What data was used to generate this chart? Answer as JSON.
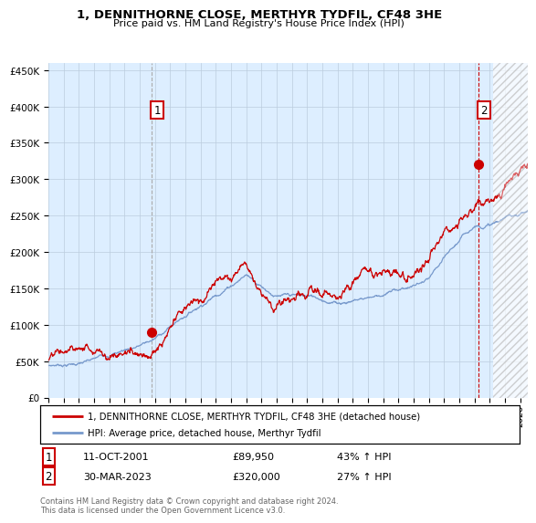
{
  "title": "1, DENNITHORNE CLOSE, MERTHYR TYDFIL, CF48 3HE",
  "subtitle": "Price paid vs. HM Land Registry's House Price Index (HPI)",
  "ylabel_ticks": [
    "£0",
    "£50K",
    "£100K",
    "£150K",
    "£200K",
    "£250K",
    "£300K",
    "£350K",
    "£400K",
    "£450K"
  ],
  "ytick_values": [
    0,
    50000,
    100000,
    150000,
    200000,
    250000,
    300000,
    350000,
    400000,
    450000
  ],
  "ylim": [
    0,
    460000
  ],
  "xlim_start": 1995.0,
  "xlim_end": 2026.5,
  "sale1_date": 2001.78,
  "sale1_price": 89950,
  "sale2_date": 2023.25,
  "sale2_price": 320000,
  "sale1_date_str": "11-OCT-2001",
  "sale1_price_str": "£89,950",
  "sale1_hpi_str": "43% ↑ HPI",
  "sale2_date_str": "30-MAR-2023",
  "sale2_price_str": "£320,000",
  "sale2_hpi_str": "27% ↑ HPI",
  "property_color": "#cc0000",
  "hpi_color": "#7799cc",
  "vline_color_sale1": "#aaaaaa",
  "vline_color_sale2": "#cc0000",
  "grid_color": "#bbccdd",
  "chart_bg": "#ddeeff",
  "legend_label_property": "1, DENNITHORNE CLOSE, MERTHYR TYDFIL, CF48 3HE (detached house)",
  "legend_label_hpi": "HPI: Average price, detached house, Merthyr Tydfil",
  "footnote": "Contains HM Land Registry data © Crown copyright and database right 2024.\nThis data is licensed under the Open Government Licence v3.0.",
  "future_start": 2024.25
}
